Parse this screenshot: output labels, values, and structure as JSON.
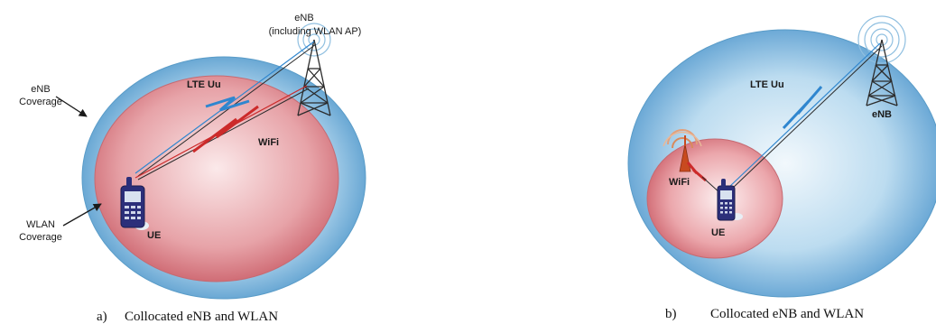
{
  "panel_a": {
    "enb_label": "eNB",
    "enb_sublabel": "(including WLAN AP)",
    "enb_coverage_line1": "eNB",
    "enb_coverage_line2": "Coverage",
    "wlan_coverage_line1": "WLAN",
    "wlan_coverage_line2": "Coverage",
    "lte_link": "LTE Uu",
    "wifi_link": "WiFi",
    "ue_label": "UE",
    "caption_letter": "a)",
    "caption_text": "Collocated eNB and WLAN"
  },
  "panel_b": {
    "lte_link": "LTE Uu",
    "enb_label": "eNB",
    "wifi_label": "WiFi",
    "ue_label": "UE",
    "caption_letter": "b)",
    "caption_text": "Collocated eNB and WLAN"
  },
  "colors": {
    "outer_coverage": "#7ab6dc",
    "inner_coverage": "#d9868d",
    "lte_link": "#2f86cf",
    "wifi_link": "#cc2a2a",
    "tower": "#2b2b2b",
    "phone": "#2c2f7a"
  }
}
